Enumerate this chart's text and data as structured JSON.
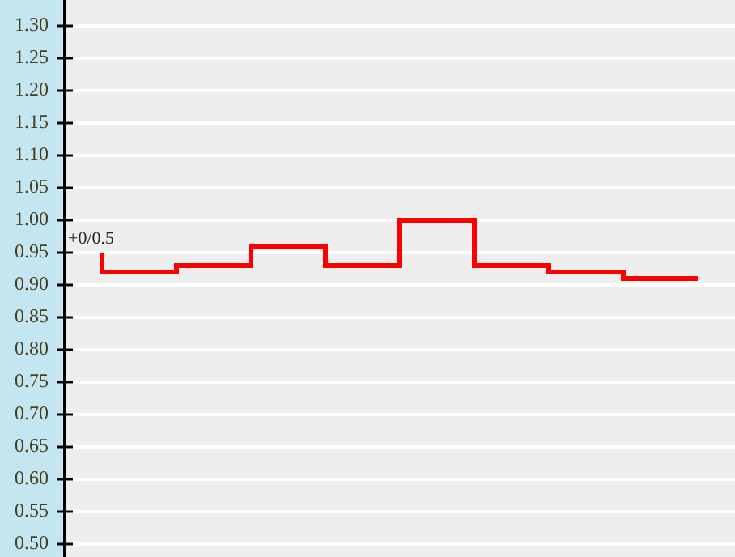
{
  "chart_data": {
    "type": "step",
    "categories": [
      null,
      null,
      null,
      null,
      null,
      null,
      null,
      null,
      null
    ],
    "series": [
      {
        "color": "#ff0000",
        "values": [
          0.95,
          0.92,
          0.93,
          0.96,
          0.93,
          1.0,
          0.93,
          0.92,
          0.91
        ]
      }
    ],
    "ylim": [
      0.48,
      1.34
    ],
    "yticks": [
      {
        "value": 0.5,
        "label": "0.50"
      },
      {
        "value": 0.55,
        "label": "0.55"
      },
      {
        "value": 0.6,
        "label": "0.60"
      },
      {
        "value": 0.65,
        "label": "0.65"
      },
      {
        "value": 0.7,
        "label": "0.70"
      },
      {
        "value": 0.75,
        "label": "0.75"
      },
      {
        "value": 0.8,
        "label": "0.80"
      },
      {
        "value": 0.85,
        "label": "0.85"
      },
      {
        "value": 0.9,
        "label": "0.90"
      },
      {
        "value": 0.95,
        "label": "0.95"
      },
      {
        "value": 1.0,
        "label": "1.00"
      },
      {
        "value": 1.05,
        "label": "1.05"
      },
      {
        "value": 1.1,
        "label": "1.10"
      },
      {
        "value": 1.15,
        "label": "1.15"
      },
      {
        "value": 1.2,
        "label": "1.20"
      },
      {
        "value": 1.25,
        "label": "1.25"
      },
      {
        "value": 1.3,
        "label": "1.30"
      }
    ],
    "annotations": [
      "+0/0.5"
    ],
    "grid": "y",
    "legend": false,
    "tick_labels": "y"
  }
}
